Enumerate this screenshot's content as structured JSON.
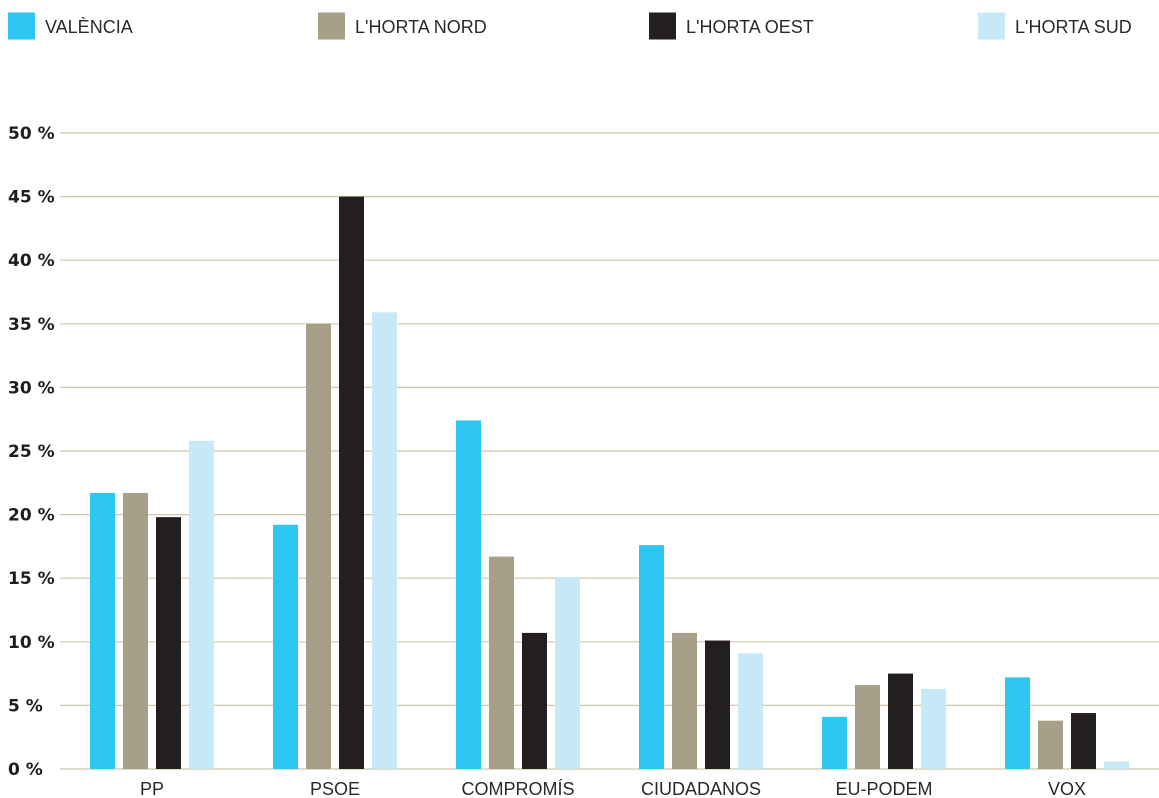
{
  "chart_data": {
    "type": "bar",
    "categories": [
      "PP",
      "PSOE",
      "COMPROMÍS",
      "CIUDADANOS",
      "EU-PODEM",
      "VOX"
    ],
    "series": [
      {
        "name": "VALÈNCIA",
        "color": "#2ec6f3",
        "values": [
          21.7,
          19.2,
          27.4,
          17.6,
          4.1,
          7.2
        ]
      },
      {
        "name": "L'HORTA NORD",
        "color": "#a89f88",
        "values": [
          21.7,
          35.0,
          16.7,
          10.7,
          6.6,
          3.8
        ]
      },
      {
        "name": "L'HORTA OEST",
        "color": "#231f20",
        "values": [
          19.8,
          45.0,
          10.7,
          10.1,
          7.5,
          4.4
        ]
      },
      {
        "name": "L'HORTA SUD",
        "color": "#c6e9f8",
        "values": [
          25.8,
          35.9,
          15.1,
          9.1,
          6.3,
          0.6
        ]
      }
    ],
    "y_ticks": [
      "0 %",
      "5 %",
      "10 %",
      "15 %",
      "20 %",
      "25 %",
      "30 %",
      "35 %",
      "40 %",
      "45 %",
      "50 %"
    ],
    "ylim": [
      0,
      50
    ],
    "grid": true,
    "grid_color": "#cfc8a8",
    "legend_position": "top"
  }
}
